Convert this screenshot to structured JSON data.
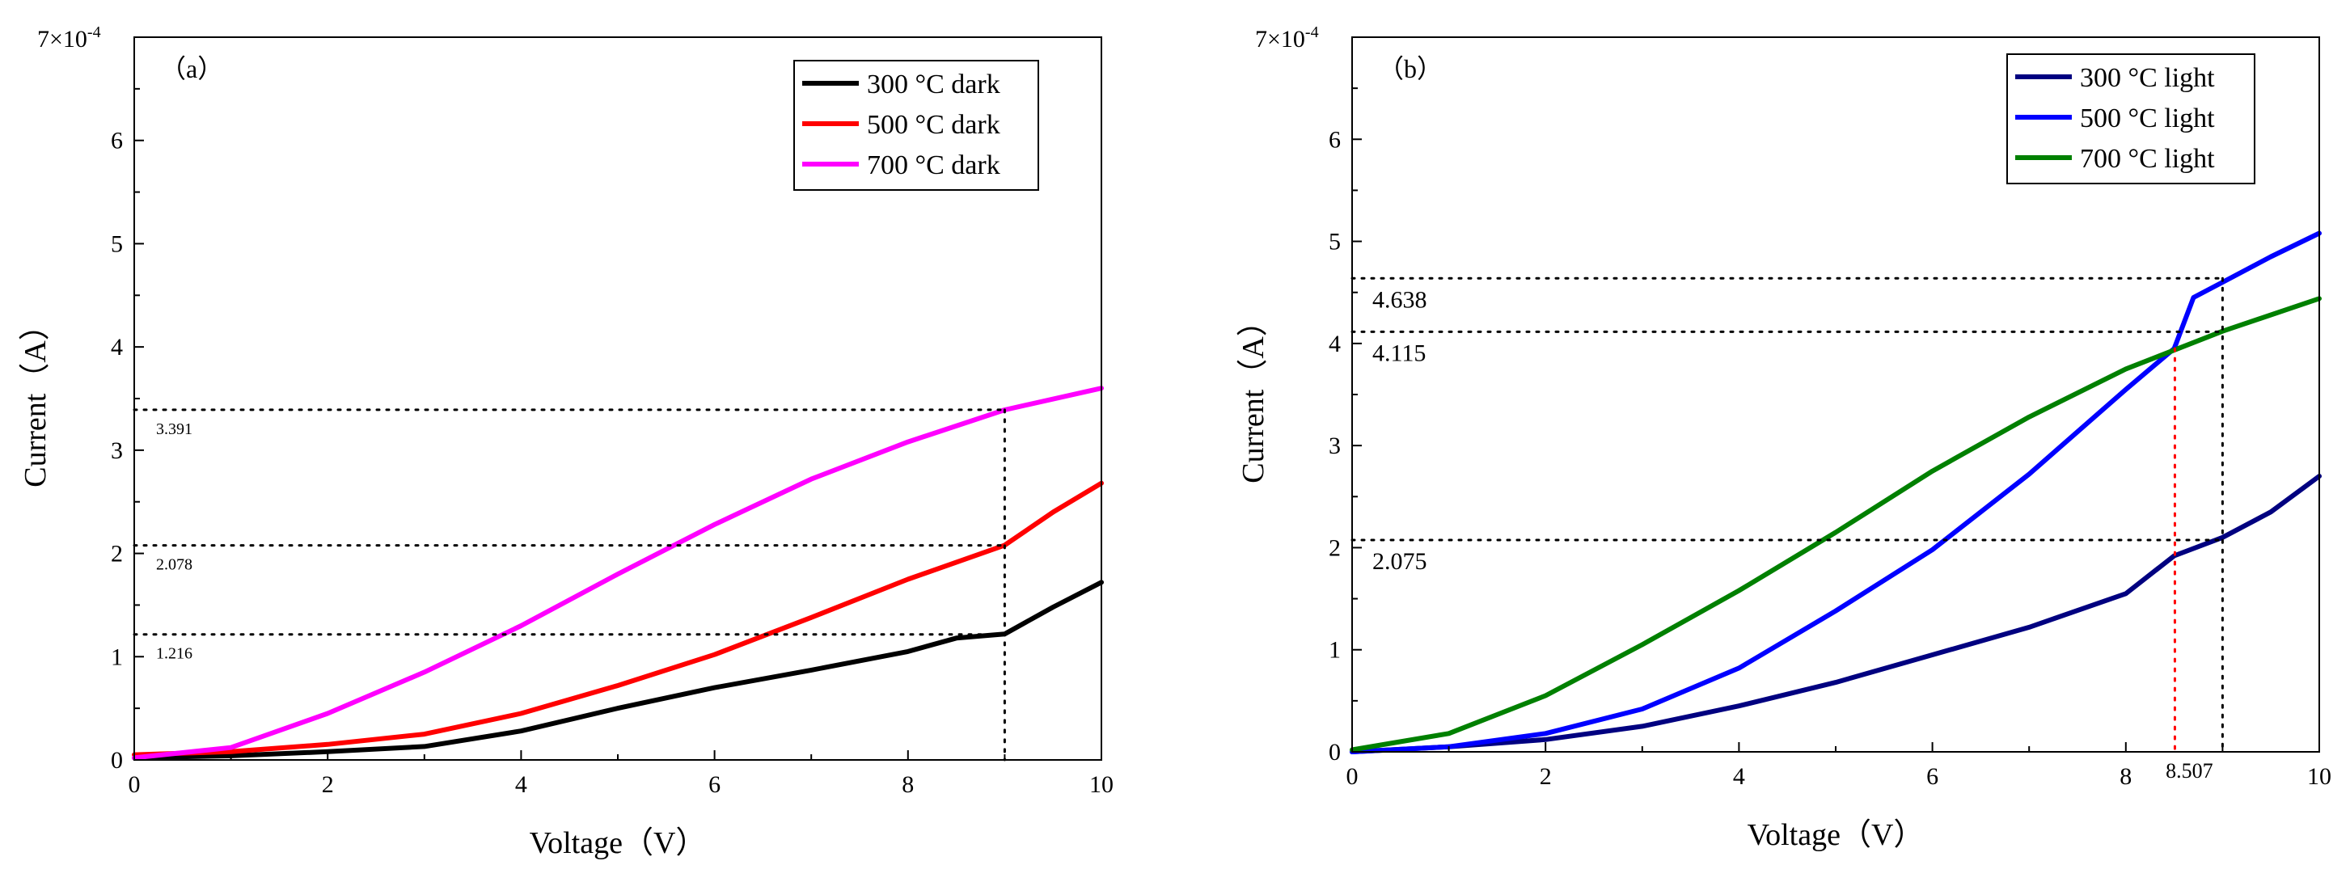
{
  "chart_data": [
    {
      "type": "line",
      "panel_label": "（a）",
      "xlabel": "Voltage（V）",
      "ylabel": "Current（A）",
      "y_multiplier": "7×10",
      "y_multiplier_exp": "-4",
      "xlim": [
        0,
        10
      ],
      "ylim": [
        0,
        7
      ],
      "x_ticks": [
        0,
        2,
        4,
        6,
        8,
        10
      ],
      "y_ticks": [
        0,
        1,
        2,
        3,
        4,
        5,
        6
      ],
      "grid": false,
      "legend_position": "top-right",
      "series": [
        {
          "name": "300 °C dark",
          "color": "#000000",
          "x": [
            0,
            1,
            2,
            3,
            4,
            5,
            6,
            7,
            8,
            8.5,
            9,
            9.5,
            10
          ],
          "y": [
            0.02,
            0.04,
            0.08,
            0.13,
            0.28,
            0.5,
            0.7,
            0.87,
            1.05,
            1.18,
            1.22,
            1.48,
            1.72
          ]
        },
        {
          "name": "500 °C dark",
          "color": "#ff0000",
          "x": [
            0,
            1,
            2,
            3,
            4,
            5,
            6,
            7,
            8,
            9,
            9.5,
            10
          ],
          "y": [
            0.05,
            0.08,
            0.15,
            0.25,
            0.45,
            0.72,
            1.02,
            1.38,
            1.75,
            2.08,
            2.4,
            2.68
          ]
        },
        {
          "name": "700 °C dark",
          "color": "#ff00ff",
          "x": [
            0,
            1,
            2,
            3,
            4,
            5,
            6,
            7,
            8,
            9,
            10
          ],
          "y": [
            0.02,
            0.12,
            0.45,
            0.85,
            1.3,
            1.8,
            2.28,
            2.72,
            3.08,
            3.39,
            3.6
          ]
        }
      ],
      "annotations": [
        {
          "label": "3.391",
          "y": 3.391
        },
        {
          "label": "2.078",
          "y": 2.078
        },
        {
          "label": "1.216",
          "y": 1.216
        }
      ],
      "vline_x": 9
    },
    {
      "type": "line",
      "panel_label": "（b）",
      "xlabel": "Voltage（V）",
      "ylabel": "Current（A）",
      "y_multiplier": "7×10",
      "y_multiplier_exp": "-4",
      "xlim": [
        0,
        10
      ],
      "ylim": [
        0,
        7
      ],
      "x_ticks": [
        0,
        2,
        4,
        6,
        8,
        10
      ],
      "y_ticks": [
        0,
        1,
        2,
        3,
        4,
        5,
        6
      ],
      "grid": false,
      "legend_position": "top-right",
      "series": [
        {
          "name": "300 °C light",
          "color": "#000080",
          "x": [
            0,
            1,
            2,
            3,
            4,
            5,
            6,
            7,
            8,
            8.5,
            9,
            9.5,
            10
          ],
          "y": [
            0.0,
            0.05,
            0.12,
            0.25,
            0.45,
            0.68,
            0.95,
            1.22,
            1.55,
            1.92,
            2.1,
            2.35,
            2.7
          ]
        },
        {
          "name": "500 °C light",
          "color": "#0000ff",
          "x": [
            0,
            1,
            2,
            3,
            4,
            5,
            6,
            7,
            8,
            8.5,
            8.7,
            9,
            9.5,
            10
          ],
          "y": [
            0.0,
            0.05,
            0.18,
            0.42,
            0.82,
            1.38,
            1.98,
            2.72,
            3.55,
            3.95,
            4.45,
            4.6,
            4.85,
            5.08
          ]
        },
        {
          "name": "700 °C light",
          "color": "#008000",
          "x": [
            0,
            1,
            2,
            3,
            4,
            5,
            6,
            7,
            8,
            9,
            10
          ],
          "y": [
            0.02,
            0.18,
            0.55,
            1.05,
            1.58,
            2.15,
            2.75,
            3.28,
            3.75,
            4.12,
            4.44
          ]
        }
      ],
      "annotations": [
        {
          "label": "4.638",
          "y": 4.638
        },
        {
          "label": "4.115",
          "y": 4.115
        },
        {
          "label": "2.075",
          "y": 2.075
        }
      ],
      "vline_x": 9,
      "red_vline_x": 8.507,
      "red_vline_label": "8.507"
    }
  ]
}
